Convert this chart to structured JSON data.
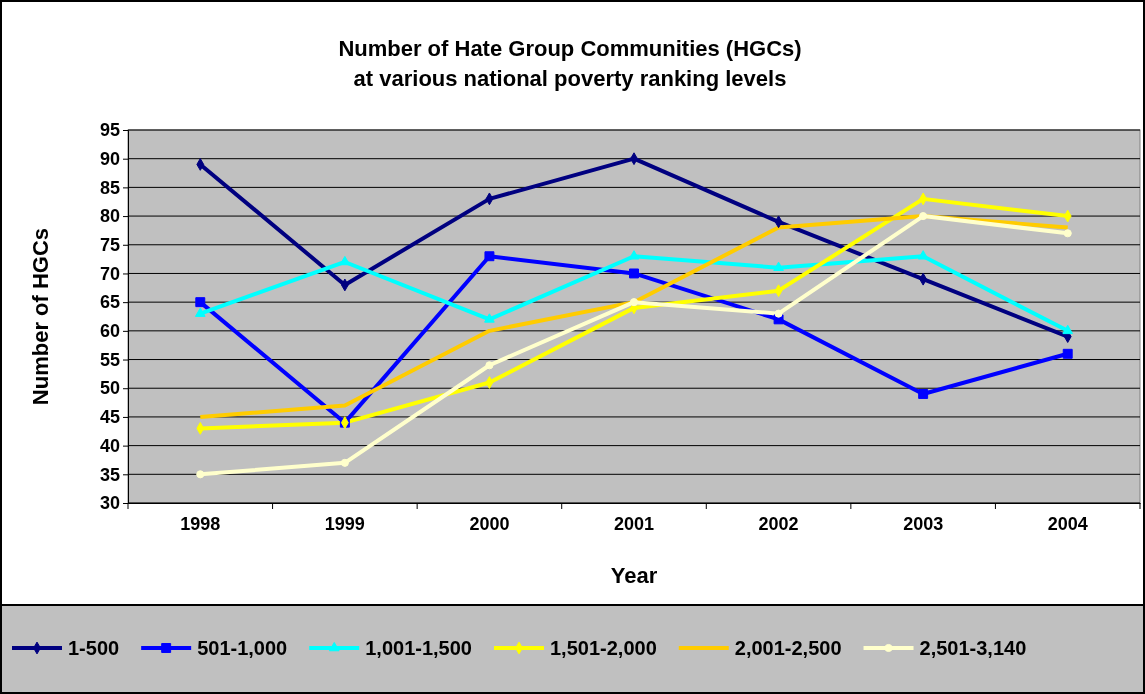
{
  "chart_data": {
    "type": "line",
    "title": "Number of Hate Group Communities (HGCs)\nat various national poverty ranking levels",
    "xlabel": "Year",
    "ylabel": "Number of HGCs",
    "categories": [
      "1998",
      "1999",
      "2000",
      "2001",
      "2002",
      "2003",
      "2004"
    ],
    "ylim": [
      30,
      95
    ],
    "yticks": [
      30,
      35,
      40,
      45,
      50,
      55,
      60,
      65,
      70,
      75,
      80,
      85,
      90,
      95
    ],
    "grid": "y",
    "legend": "bottom",
    "line_style": "solid",
    "series": [
      {
        "name": "1-500",
        "color": "#000080",
        "marker": "diamond",
        "values": [
          89,
          68,
          83,
          90,
          79,
          69,
          59
        ]
      },
      {
        "name": "501-1,000",
        "color": "#0000ff",
        "marker": "square",
        "values": [
          65,
          44,
          73,
          70,
          62,
          49,
          56
        ]
      },
      {
        "name": "1,001-1,500",
        "color": "#00ffff",
        "marker": "triangle",
        "values": [
          63,
          72,
          62,
          73,
          71,
          73,
          60
        ]
      },
      {
        "name": "1,501-2,000",
        "color": "#ffff00",
        "marker": "diamond",
        "values": [
          43,
          44,
          51,
          64,
          67,
          83,
          80
        ]
      },
      {
        "name": "2,001-2,500",
        "color": "#ffcc00",
        "marker": "none",
        "values": [
          45,
          47,
          60,
          65,
          78,
          80,
          78
        ]
      },
      {
        "name": "2,501-3,140",
        "color": "#ffffcc",
        "marker": "circle",
        "values": [
          35,
          37,
          54,
          65,
          63,
          80,
          77
        ]
      }
    ]
  }
}
